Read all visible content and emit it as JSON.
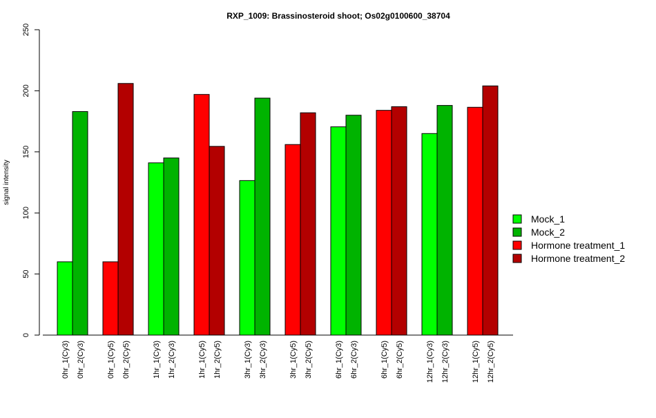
{
  "chart_data": {
    "type": "bar",
    "title": "RXP_1009: Brassinosteroid shoot; Os02g0100600_38704",
    "xlabel": "",
    "ylabel": "signal intensity",
    "ylim": [
      0,
      250
    ],
    "yticks": [
      0,
      50,
      100,
      150,
      200,
      250
    ],
    "grid": false,
    "legend_position": "right",
    "categories": [
      "0hr_1(Cy3)",
      "0hr_2(Cy3)",
      "0hr_1(Cy5)",
      "0hr_2(Cy5)",
      "1hr_1(Cy3)",
      "1hr_2(Cy3)",
      "1hr_1(Cy5)",
      "1hr_2(Cy5)",
      "3hr_1(Cy3)",
      "3hr_2(Cy3)",
      "3hr_1(Cy5)",
      "3hr_2(Cy5)",
      "6hr_1(Cy3)",
      "6hr_2(Cy3)",
      "6hr_1(Cy5)",
      "6hr_2(Cy5)",
      "12hr_1(Cy3)",
      "12hr_2(Cy3)",
      "12hr_1(Cy5)",
      "12hr_2(Cy5)"
    ],
    "values": [
      60,
      183,
      60,
      206,
      141,
      145,
      197,
      154.5,
      126.5,
      194,
      156,
      182,
      170.5,
      180,
      184,
      187,
      165,
      188,
      186.5,
      204
    ],
    "bar_series": [
      0,
      1,
      2,
      3,
      0,
      1,
      2,
      3,
      0,
      1,
      2,
      3,
      0,
      1,
      2,
      3,
      0,
      1,
      2,
      3
    ],
    "series": [
      {
        "name": "Mock_1",
        "color": "#00ff00"
      },
      {
        "name": "Mock_2",
        "color": "#00b300"
      },
      {
        "name": "Hormone treatment_1",
        "color": "#ff0000"
      },
      {
        "name": "Hormone treatment_2",
        "color": "#b30000"
      }
    ]
  }
}
